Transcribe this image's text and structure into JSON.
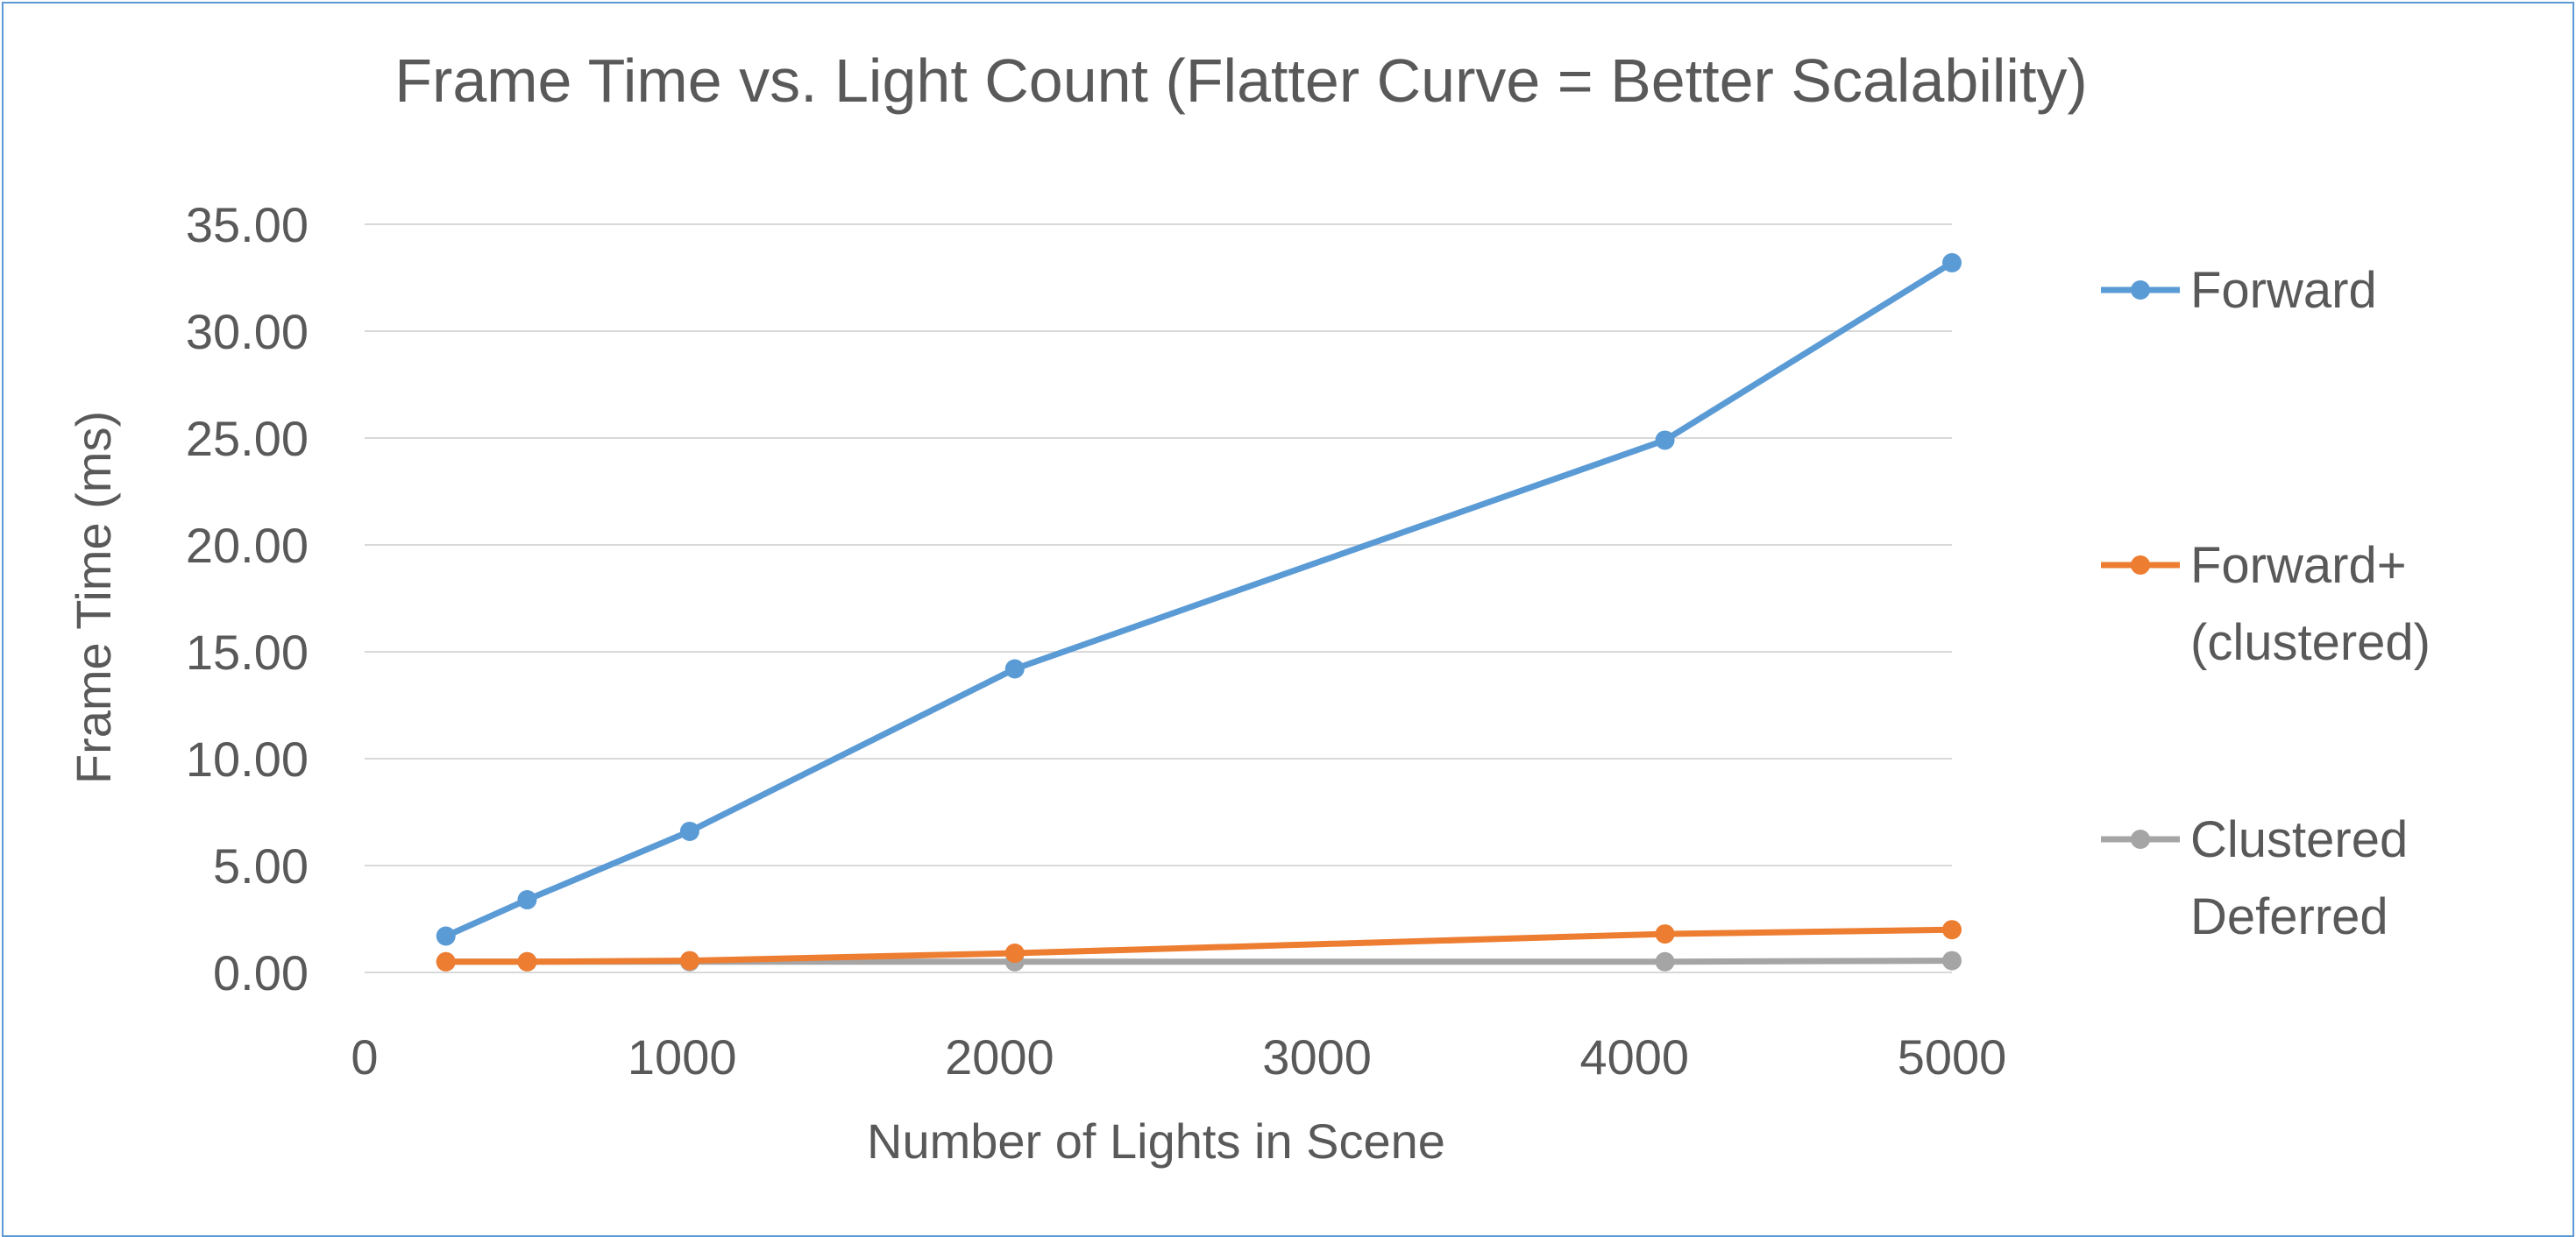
{
  "chart_data": {
    "type": "line",
    "title": "Frame Time vs. Light Count (Flatter Curve = Better Scalability)",
    "xlabel": "Number of Lights in Scene",
    "ylabel": "Frame Time (ms)",
    "xlim": [
      0,
      5000
    ],
    "ylim": [
      0,
      35
    ],
    "x_ticks": [
      0,
      1000,
      2000,
      3000,
      4000,
      5000
    ],
    "x_tick_labels": [
      "0",
      "1000",
      "2000",
      "3000",
      "4000",
      "5000"
    ],
    "y_ticks": [
      0,
      5,
      10,
      15,
      20,
      25,
      30,
      35
    ],
    "y_tick_labels": [
      "0.00",
      "5.00",
      "10.00",
      "15.00",
      "20.00",
      "25.00",
      "30.00",
      "35.00"
    ],
    "grid": "horizontal",
    "legend_position": "right",
    "series": [
      {
        "name": "Forward",
        "legend_lines": [
          "Forward"
        ],
        "color": "#5b9bd5",
        "x": [
          256,
          512,
          1024,
          2048,
          4096,
          5000
        ],
        "y": [
          1.7,
          3.4,
          6.6,
          14.2,
          24.9,
          33.2
        ]
      },
      {
        "name": "Forward+ (clustered)",
        "legend_lines": [
          "Forward+",
          "(clustered)"
        ],
        "color": "#ed7d31",
        "x": [
          256,
          512,
          1024,
          2048,
          4096,
          5000
        ],
        "y": [
          0.5,
          0.5,
          0.55,
          0.9,
          1.8,
          2.0
        ]
      },
      {
        "name": "Clustered Deferred",
        "legend_lines": [
          "Clustered",
          "Deferred"
        ],
        "color": "#a5a5a5",
        "x": [
          256,
          512,
          1024,
          2048,
          4096,
          5000
        ],
        "y": [
          0.5,
          0.5,
          0.5,
          0.5,
          0.5,
          0.55
        ]
      }
    ]
  }
}
